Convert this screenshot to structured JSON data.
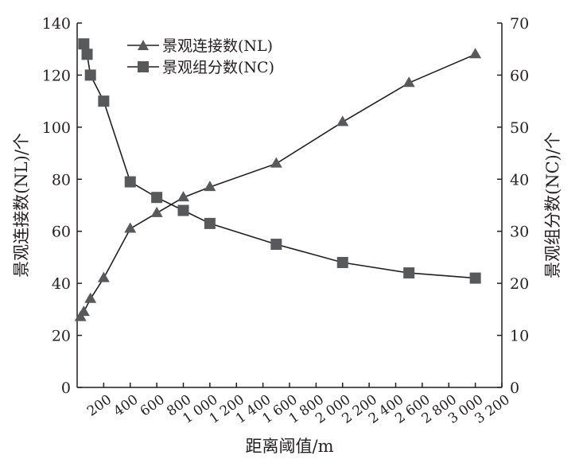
{
  "chart_data": {
    "type": "line",
    "xlabel": "距离阈值/m",
    "ylabel_left": "景观连接数(NL)/个",
    "ylabel_right": "景观组分数(NC)/个",
    "x_ticks": [
      "200",
      "400",
      "600",
      "800",
      "1 000",
      "1 200",
      "1 400",
      "1 600",
      "1 800",
      "2 000",
      "2 200",
      "2 400",
      "2 600",
      "2 800",
      "3 000",
      "3 200"
    ],
    "x_tick_values": [
      200,
      400,
      600,
      800,
      1000,
      1200,
      1400,
      1600,
      1800,
      2000,
      2200,
      2400,
      2600,
      2800,
      3000,
      3200
    ],
    "xlim": [
      0,
      3200
    ],
    "ylim_left": [
      0,
      140
    ],
    "ylim_right": [
      0,
      70
    ],
    "y_ticks_left": [
      "0",
      "20",
      "40",
      "60",
      "80",
      "100",
      "120",
      "140"
    ],
    "y_ticks_right": [
      "0",
      "10",
      "20",
      "30",
      "40",
      "50",
      "60",
      "70"
    ],
    "legend_position": "top-left",
    "series": [
      {
        "name": "景观连接数(NL)",
        "axis": "left",
        "marker": "triangle",
        "x": [
          25,
          50,
          100,
          200,
          400,
          600,
          800,
          1000,
          1500,
          2000,
          2500,
          3000
        ],
        "y": [
          27,
          29,
          34,
          42,
          61,
          67,
          73,
          77,
          86,
          102,
          117,
          128
        ]
      },
      {
        "name": "景观组分数(NC)",
        "axis": "right",
        "marker": "square",
        "x": [
          50,
          75,
          100,
          200,
          400,
          600,
          800,
          1000,
          1500,
          2000,
          2500,
          3000
        ],
        "y": [
          66,
          64,
          60,
          55,
          39.5,
          36.5,
          34,
          31.5,
          27.5,
          24,
          22,
          21
        ]
      }
    ],
    "colors": {
      "line": "#231f20",
      "marker": "#58595b"
    }
  }
}
